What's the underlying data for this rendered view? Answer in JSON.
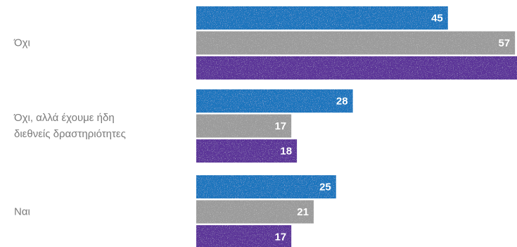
{
  "chart_data": {
    "type": "bar",
    "orientation": "horizontal",
    "categories": [
      "Όχι",
      "Όχι, αλλά έχουμε ήδη\nδιεθνείς δραστηριότητες",
      "Ναι"
    ],
    "series": [
      {
        "values": [
          45,
          28,
          25
        ],
        "color": "#1b74bd"
      },
      {
        "values": [
          57,
          17,
          21
        ],
        "color": "#9b9b9b"
      },
      {
        "values": [
          62,
          18,
          17
        ],
        "color": "#5b3498"
      }
    ],
    "xlim": [
      0,
      62
    ],
    "grid": false,
    "legend": "none"
  }
}
